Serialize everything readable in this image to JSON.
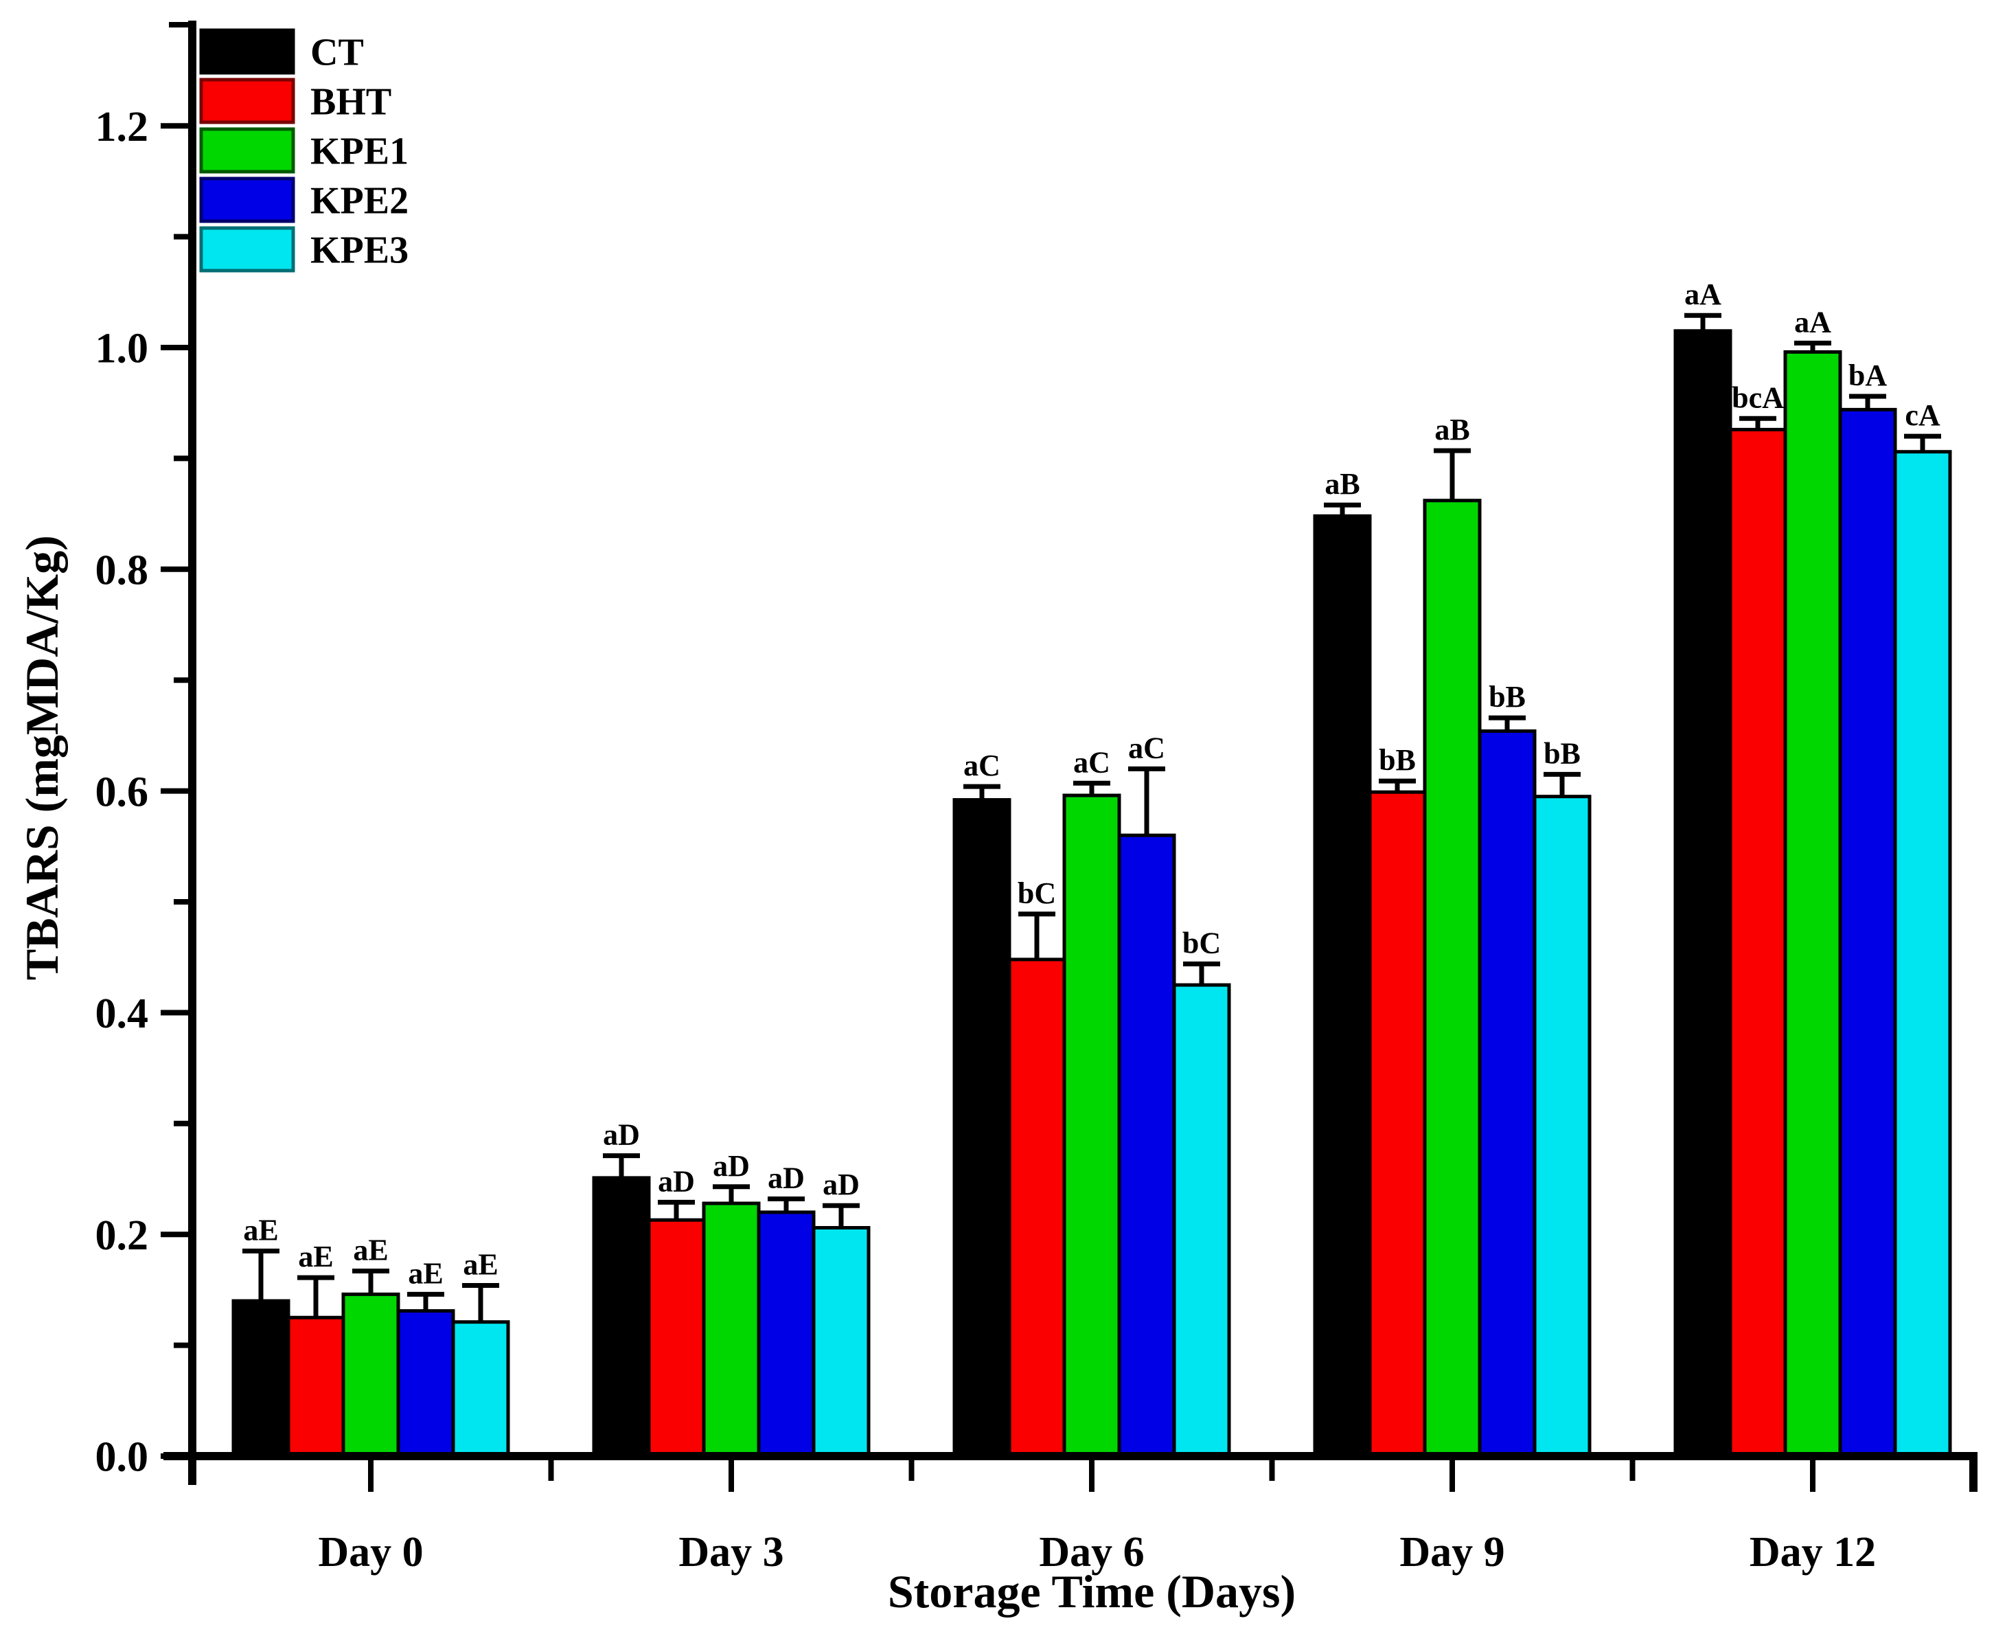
{
  "figure": {
    "background": "#ffffff",
    "axis_color": "#000000",
    "error_bar_color": "#000000"
  },
  "chart_data": {
    "type": "bar",
    "title": "",
    "xlabel": "Storage Time (Days)",
    "ylabel": "TBARS (mgMDA/Kg)",
    "categories": [
      "Day 0",
      "Day 3",
      "Day 6",
      "Day 9",
      "Day 12"
    ],
    "ylim": [
      0,
      1.29
    ],
    "yticks": [
      {
        "value": 0.0,
        "label": "0.0"
      },
      {
        "value": 0.2,
        "label": "0.2"
      },
      {
        "value": 0.4,
        "label": "0.4"
      },
      {
        "value": 0.6,
        "label": "0.6"
      },
      {
        "value": 0.8,
        "label": "0.8"
      },
      {
        "value": 1.0,
        "label": "1.0"
      },
      {
        "value": 1.2,
        "label": "1.2"
      }
    ],
    "yticks_minor": [
      0.1,
      0.3,
      0.5,
      0.7,
      0.9,
      1.1
    ],
    "grid": false,
    "legend_position": "top-left",
    "series": [
      {
        "name": "CT",
        "color": "#000000",
        "border": "#000000",
        "values": [
          0.14,
          0.251,
          0.592,
          0.848,
          1.015
        ],
        "errors": [
          0.045,
          0.02,
          0.012,
          0.01,
          0.014
        ],
        "labels": [
          "aE",
          "aD",
          "aC",
          "aB",
          "aA"
        ]
      },
      {
        "name": "BHT",
        "color": "#fa0000",
        "border": "#7a0000",
        "values": [
          0.125,
          0.213,
          0.448,
          0.599,
          0.926
        ],
        "errors": [
          0.036,
          0.016,
          0.041,
          0.01,
          0.01
        ],
        "labels": [
          "aE",
          "aD",
          "bC",
          "bB",
          "bcA"
        ]
      },
      {
        "name": "KPE1",
        "color": "#00d600",
        "border": "#005a00",
        "values": [
          0.146,
          0.228,
          0.596,
          0.862,
          0.996
        ],
        "errors": [
          0.021,
          0.015,
          0.011,
          0.045,
          0.008
        ],
        "labels": [
          "aE",
          "aD",
          "aC",
          "aB",
          "aA"
        ]
      },
      {
        "name": "KPE2",
        "color": "#0000e6",
        "border": "#00006e",
        "values": [
          0.131,
          0.22,
          0.56,
          0.654,
          0.944
        ],
        "errors": [
          0.015,
          0.012,
          0.06,
          0.012,
          0.012
        ],
        "labels": [
          "aE",
          "aD",
          "aC",
          "bB",
          "bA"
        ]
      },
      {
        "name": "KPE3",
        "color": "#00e6f0",
        "border": "#006e74",
        "values": [
          0.121,
          0.206,
          0.425,
          0.595,
          0.906
        ],
        "errors": [
          0.033,
          0.02,
          0.019,
          0.02,
          0.014
        ],
        "labels": [
          "aE",
          "aD",
          "bC",
          "bB",
          "cA"
        ]
      }
    ]
  }
}
